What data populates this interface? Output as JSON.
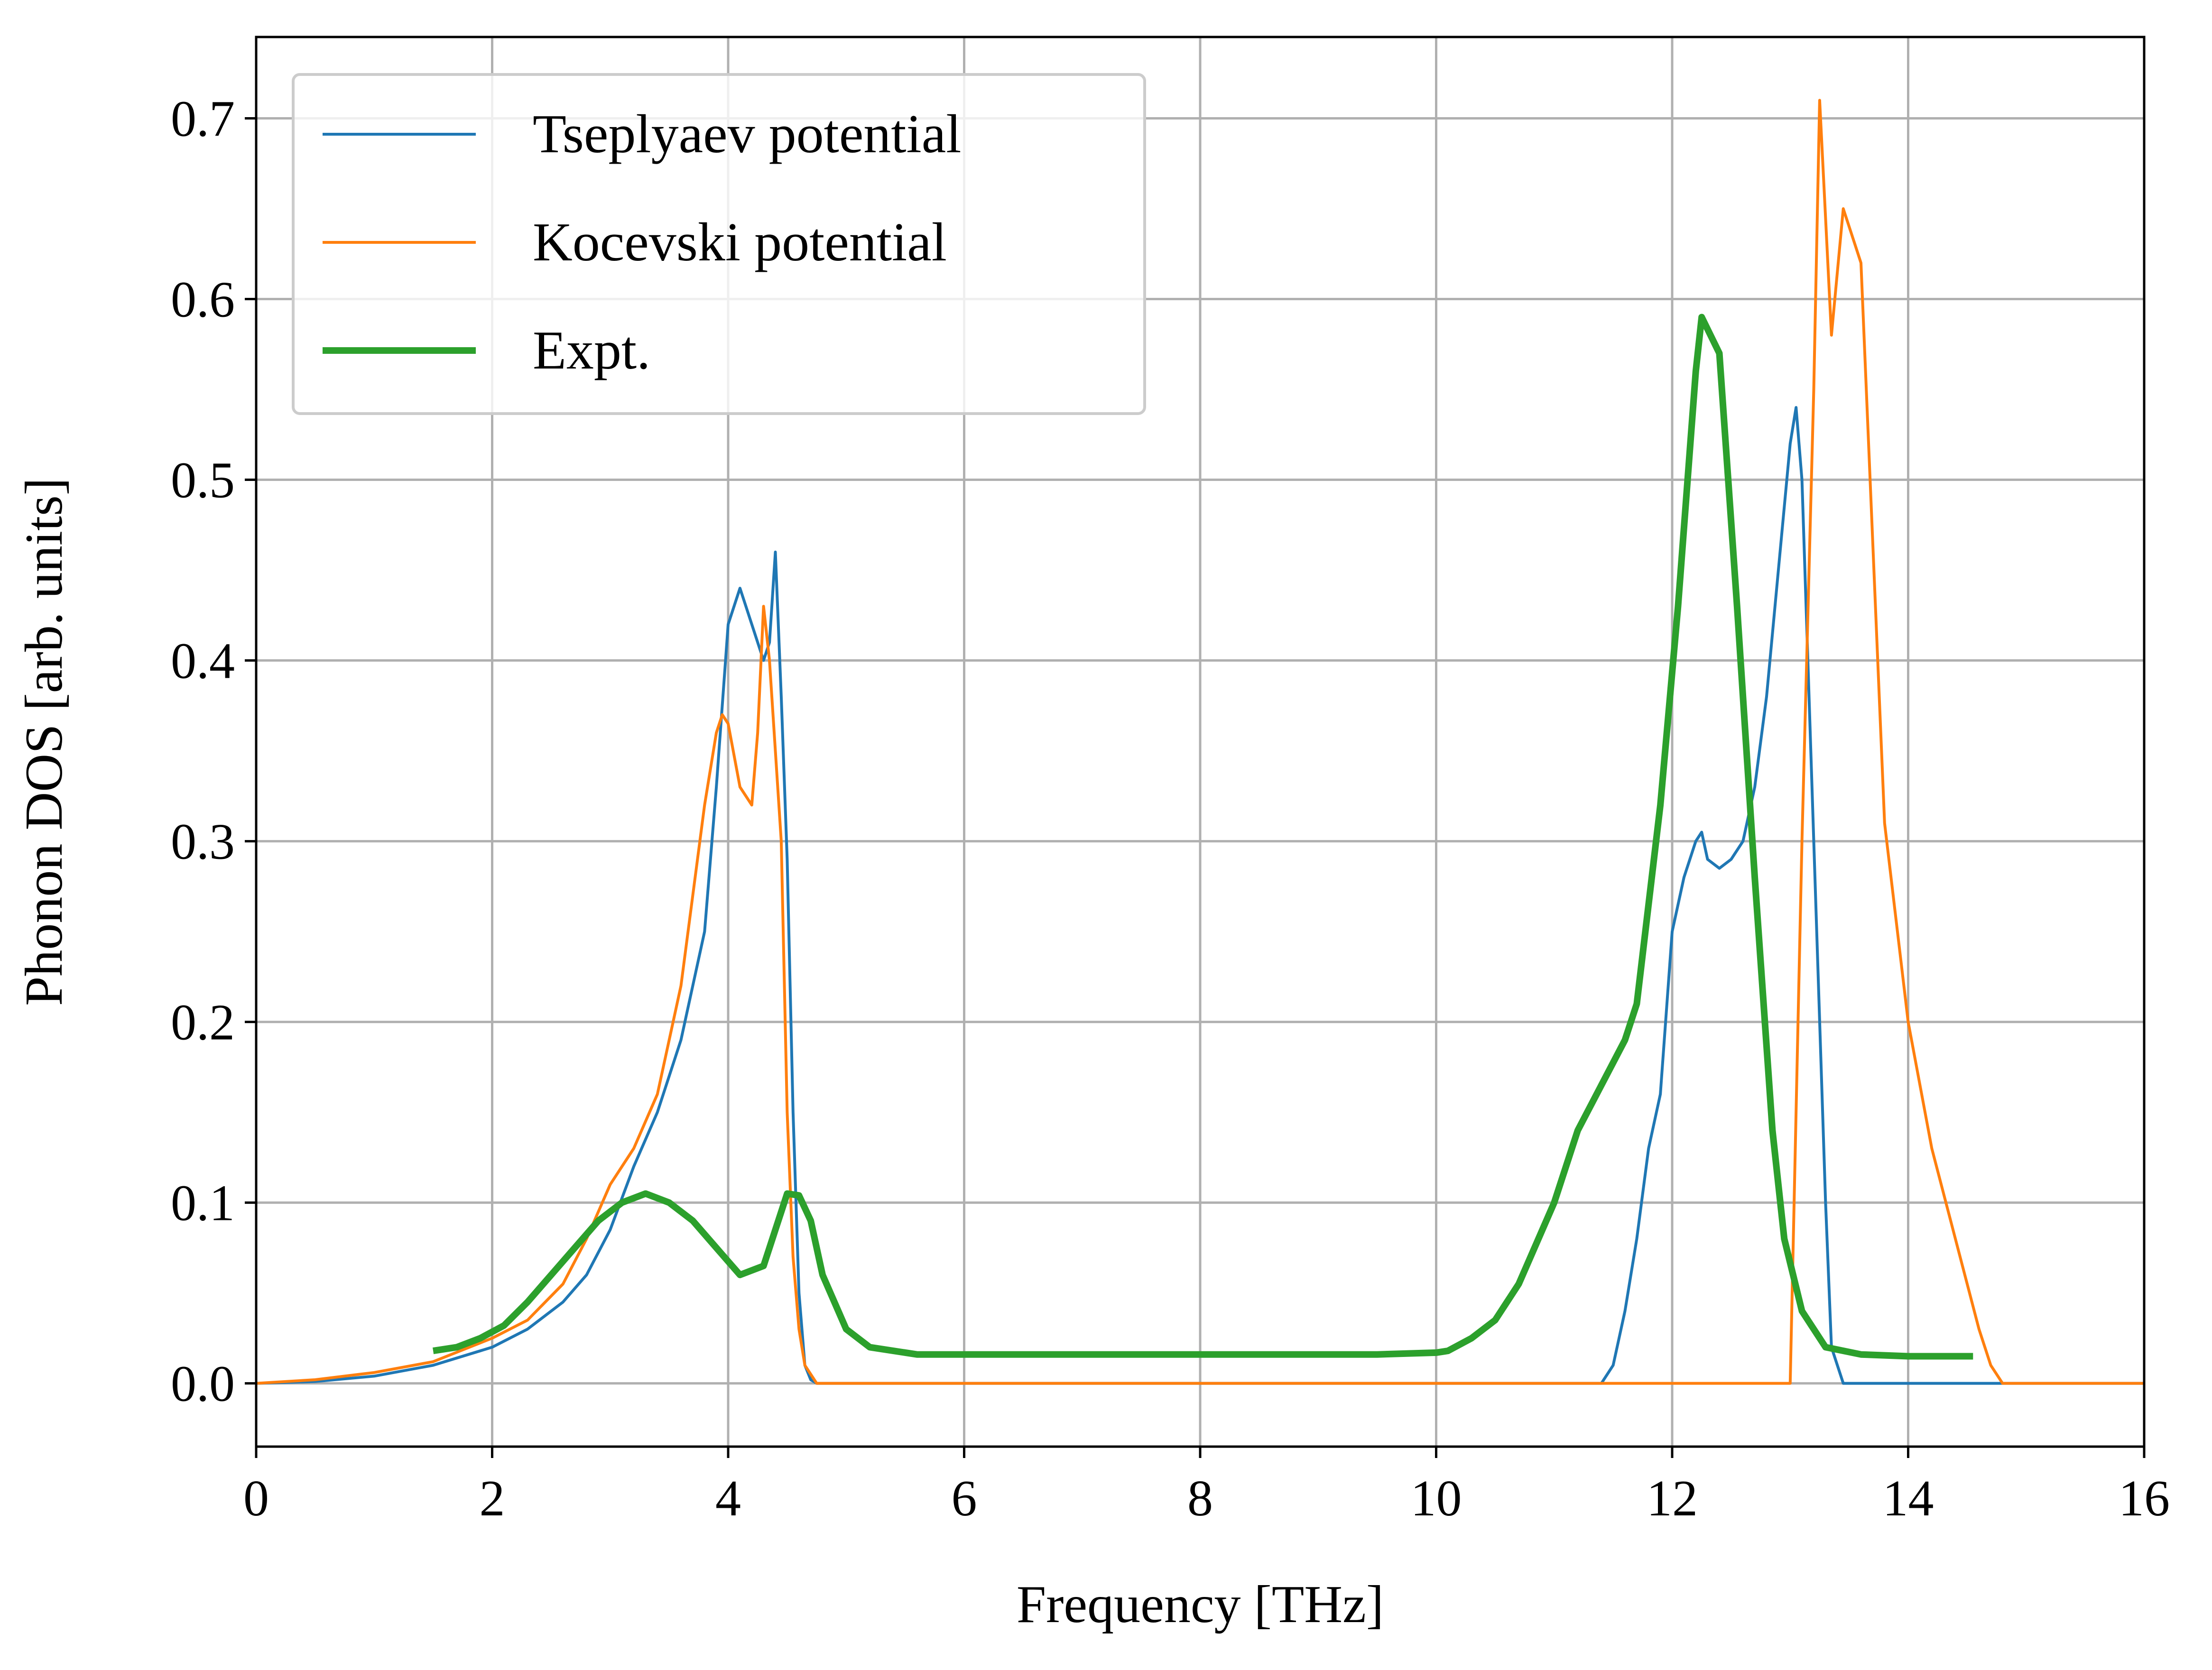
{
  "chart_data": {
    "type": "line",
    "xlabel": "Frequency [THz]",
    "ylabel": "Phonon DOS [arb. units]",
    "xlim": [
      0,
      16
    ],
    "ylim": [
      -0.035,
      0.745
    ],
    "xticks": [
      0,
      2,
      4,
      6,
      8,
      10,
      12,
      14,
      16
    ],
    "xtick_labels": [
      "0",
      "2",
      "4",
      "6",
      "8",
      "10",
      "12",
      "14",
      "16"
    ],
    "yticks": [
      0.0,
      0.1,
      0.2,
      0.3,
      0.4,
      0.5,
      0.6,
      0.7
    ],
    "ytick_labels": [
      "0.0",
      "0.1",
      "0.2",
      "0.3",
      "0.4",
      "0.5",
      "0.6",
      "0.7"
    ],
    "grid": true,
    "legend_position": "top-left",
    "series": [
      {
        "name": "Tseplyaev potential",
        "color": "#1f77b4",
        "line_width": "thin",
        "x": [
          0,
          0.5,
          1.0,
          1.5,
          2.0,
          2.3,
          2.6,
          2.8,
          3.0,
          3.2,
          3.4,
          3.6,
          3.8,
          3.9,
          4.0,
          4.1,
          4.2,
          4.3,
          4.35,
          4.4,
          4.45,
          4.5,
          4.55,
          4.6,
          4.65,
          4.7,
          4.75,
          11.4,
          11.5,
          11.6,
          11.7,
          11.8,
          11.9,
          12.0,
          12.1,
          12.2,
          12.25,
          12.3,
          12.4,
          12.5,
          12.6,
          12.7,
          12.8,
          12.9,
          13.0,
          13.05,
          13.1,
          13.2,
          13.3,
          13.35,
          13.45,
          16
        ],
        "y": [
          0,
          0.001,
          0.004,
          0.01,
          0.02,
          0.03,
          0.045,
          0.06,
          0.085,
          0.12,
          0.15,
          0.19,
          0.25,
          0.33,
          0.42,
          0.44,
          0.42,
          0.4,
          0.41,
          0.46,
          0.38,
          0.29,
          0.15,
          0.05,
          0.01,
          0.002,
          0,
          0,
          0.01,
          0.04,
          0.08,
          0.13,
          0.16,
          0.25,
          0.28,
          0.3,
          0.305,
          0.29,
          0.285,
          0.29,
          0.3,
          0.33,
          0.38,
          0.45,
          0.52,
          0.54,
          0.5,
          0.3,
          0.1,
          0.02,
          0,
          0
        ]
      },
      {
        "name": "Kocevski potential",
        "color": "#ff7f0e",
        "line_width": "thin",
        "x": [
          0,
          0.5,
          1.0,
          1.5,
          2.0,
          2.3,
          2.6,
          2.8,
          3.0,
          3.2,
          3.4,
          3.6,
          3.7,
          3.8,
          3.9,
          3.95,
          4.0,
          4.1,
          4.2,
          4.25,
          4.3,
          4.35,
          4.4,
          4.45,
          4.5,
          4.55,
          4.6,
          4.65,
          4.75,
          13.0,
          13.1,
          13.2,
          13.25,
          13.35,
          13.45,
          13.55,
          13.6,
          13.8,
          14.0,
          14.2,
          14.4,
          14.6,
          14.7,
          14.8,
          16
        ],
        "y": [
          0,
          0.002,
          0.006,
          0.012,
          0.025,
          0.035,
          0.055,
          0.08,
          0.11,
          0.13,
          0.16,
          0.22,
          0.27,
          0.32,
          0.36,
          0.37,
          0.365,
          0.33,
          0.32,
          0.36,
          0.43,
          0.4,
          0.35,
          0.3,
          0.15,
          0.07,
          0.03,
          0.01,
          0,
          0,
          0.3,
          0.55,
          0.71,
          0.58,
          0.65,
          0.63,
          0.62,
          0.31,
          0.2,
          0.13,
          0.08,
          0.03,
          0.01,
          0,
          0
        ]
      },
      {
        "name": "Expt.",
        "color": "#2ca02c",
        "line_width": "thick",
        "x": [
          1.5,
          1.7,
          1.9,
          2.1,
          2.3,
          2.5,
          2.7,
          2.9,
          3.1,
          3.3,
          3.5,
          3.7,
          3.9,
          4.1,
          4.3,
          4.5,
          4.6,
          4.7,
          4.8,
          5.0,
          5.2,
          5.6,
          6.0,
          7.0,
          8.0,
          9.0,
          9.5,
          10.0,
          10.1,
          10.3,
          10.5,
          10.7,
          10.9,
          11.0,
          11.2,
          11.4,
          11.6,
          11.7,
          11.9,
          12.05,
          12.2,
          12.25,
          12.4,
          12.55,
          12.7,
          12.85,
          12.95,
          13.1,
          13.3,
          13.6,
          14.0,
          14.55
        ],
        "y": [
          0.018,
          0.02,
          0.025,
          0.032,
          0.045,
          0.06,
          0.075,
          0.09,
          0.1,
          0.105,
          0.1,
          0.09,
          0.075,
          0.06,
          0.065,
          0.105,
          0.104,
          0.09,
          0.06,
          0.03,
          0.02,
          0.016,
          0.016,
          0.016,
          0.016,
          0.016,
          0.016,
          0.017,
          0.018,
          0.025,
          0.035,
          0.055,
          0.085,
          0.1,
          0.14,
          0.165,
          0.19,
          0.21,
          0.32,
          0.43,
          0.56,
          0.59,
          0.57,
          0.43,
          0.28,
          0.14,
          0.08,
          0.04,
          0.02,
          0.016,
          0.015,
          0.015
        ]
      }
    ]
  }
}
